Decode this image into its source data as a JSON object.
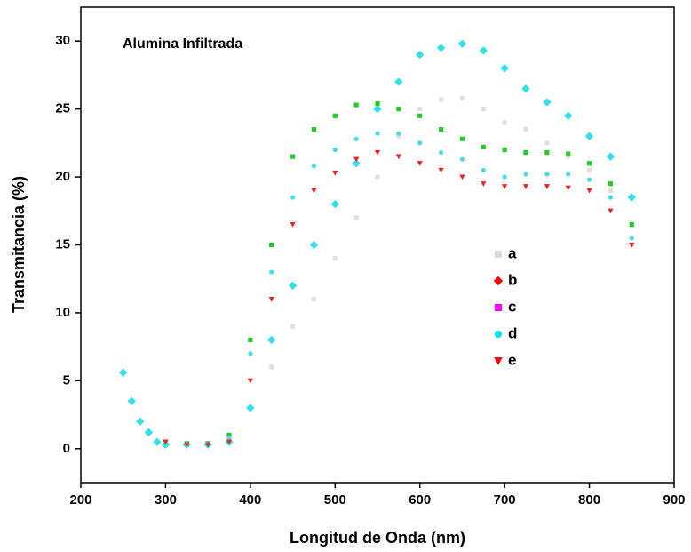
{
  "chart_data": {
    "type": "scatter",
    "annotation": "Alumina Infiltrada",
    "xlabel": "Longitud de Onda (nm)",
    "ylabel": "Transmitancia (%)",
    "xlim": [
      200,
      900
    ],
    "ylim": [
      -2.5,
      32.5
    ],
    "xticks": [
      200,
      300,
      400,
      500,
      600,
      700,
      800,
      900
    ],
    "yticks": [
      0,
      5,
      10,
      15,
      20,
      25,
      30
    ],
    "series": [
      {
        "name": "a",
        "color": "#d9d9d9",
        "point_color": "#e0e0e0",
        "marker": "square",
        "x": [
          300,
          325,
          350,
          375,
          400,
          425,
          450,
          475,
          500,
          525,
          550,
          575,
          600,
          625,
          650,
          675,
          700,
          725,
          750,
          775,
          800,
          825,
          850
        ],
        "values": [
          0.4,
          0.3,
          0.3,
          0.5,
          3,
          6,
          9,
          11,
          14,
          17,
          20,
          23,
          25,
          25.7,
          25.8,
          25,
          24,
          23.5,
          22.5,
          21.5,
          20.5,
          19,
          15
        ]
      },
      {
        "name": "b",
        "color": "#ff0000",
        "point_color": "#33e0e8",
        "marker": "diamond",
        "x": [
          250,
          260,
          270,
          280,
          290,
          300,
          325,
          350,
          375,
          400,
          425,
          450,
          475,
          500,
          525,
          550,
          575,
          600,
          625,
          650,
          675,
          700,
          725,
          750,
          775,
          800,
          825,
          850
        ],
        "values": [
          5.6,
          3.5,
          2,
          1.2,
          0.5,
          0.3,
          0.3,
          0.3,
          0.5,
          3,
          8,
          12,
          15,
          18,
          21,
          25,
          27,
          29,
          29.5,
          29.8,
          29.3,
          28,
          26.5,
          25.5,
          24.5,
          23,
          21.5,
          18.5
        ]
      },
      {
        "name": "c",
        "color": "#ff00ff",
        "point_color": "#22cc22",
        "marker": "square",
        "x": [
          300,
          325,
          350,
          375,
          400,
          425,
          450,
          475,
          500,
          525,
          550,
          575,
          600,
          625,
          650,
          675,
          700,
          725,
          750,
          775,
          800,
          825,
          850
        ],
        "values": [
          0.5,
          0.4,
          0.4,
          1,
          8,
          15,
          21.5,
          23.5,
          24.5,
          25.3,
          25.4,
          25,
          24.5,
          23.5,
          22.8,
          22.2,
          22,
          21.8,
          21.8,
          21.7,
          21,
          19.5,
          16.5
        ]
      },
      {
        "name": "d",
        "color": "#00e5ee",
        "point_color": "#44dde8",
        "marker": "circle",
        "x": [
          300,
          325,
          350,
          375,
          400,
          425,
          450,
          475,
          500,
          525,
          550,
          575,
          600,
          625,
          650,
          675,
          700,
          725,
          750,
          775,
          800,
          825,
          850
        ],
        "values": [
          0.5,
          0.4,
          0.4,
          0.8,
          7,
          13,
          18.5,
          20.8,
          22,
          22.8,
          23.2,
          23.2,
          22.5,
          21.8,
          21.3,
          20.5,
          20,
          20.2,
          20.2,
          20.2,
          19.8,
          18.5,
          15.5
        ]
      },
      {
        "name": "e",
        "color": "#ff0000",
        "point_color": "#ee2222",
        "marker": "triangle",
        "x": [
          300,
          325,
          350,
          375,
          400,
          425,
          450,
          475,
          500,
          525,
          550,
          575,
          600,
          625,
          650,
          675,
          700,
          725,
          750,
          775,
          800,
          825,
          850
        ],
        "values": [
          0.5,
          0.3,
          0.3,
          0.5,
          5,
          11,
          16.5,
          19,
          20.3,
          21.3,
          21.8,
          21.5,
          21,
          20.5,
          20,
          19.5,
          19.3,
          19.3,
          19.3,
          19.2,
          19,
          17.5,
          15
        ]
      }
    ]
  }
}
